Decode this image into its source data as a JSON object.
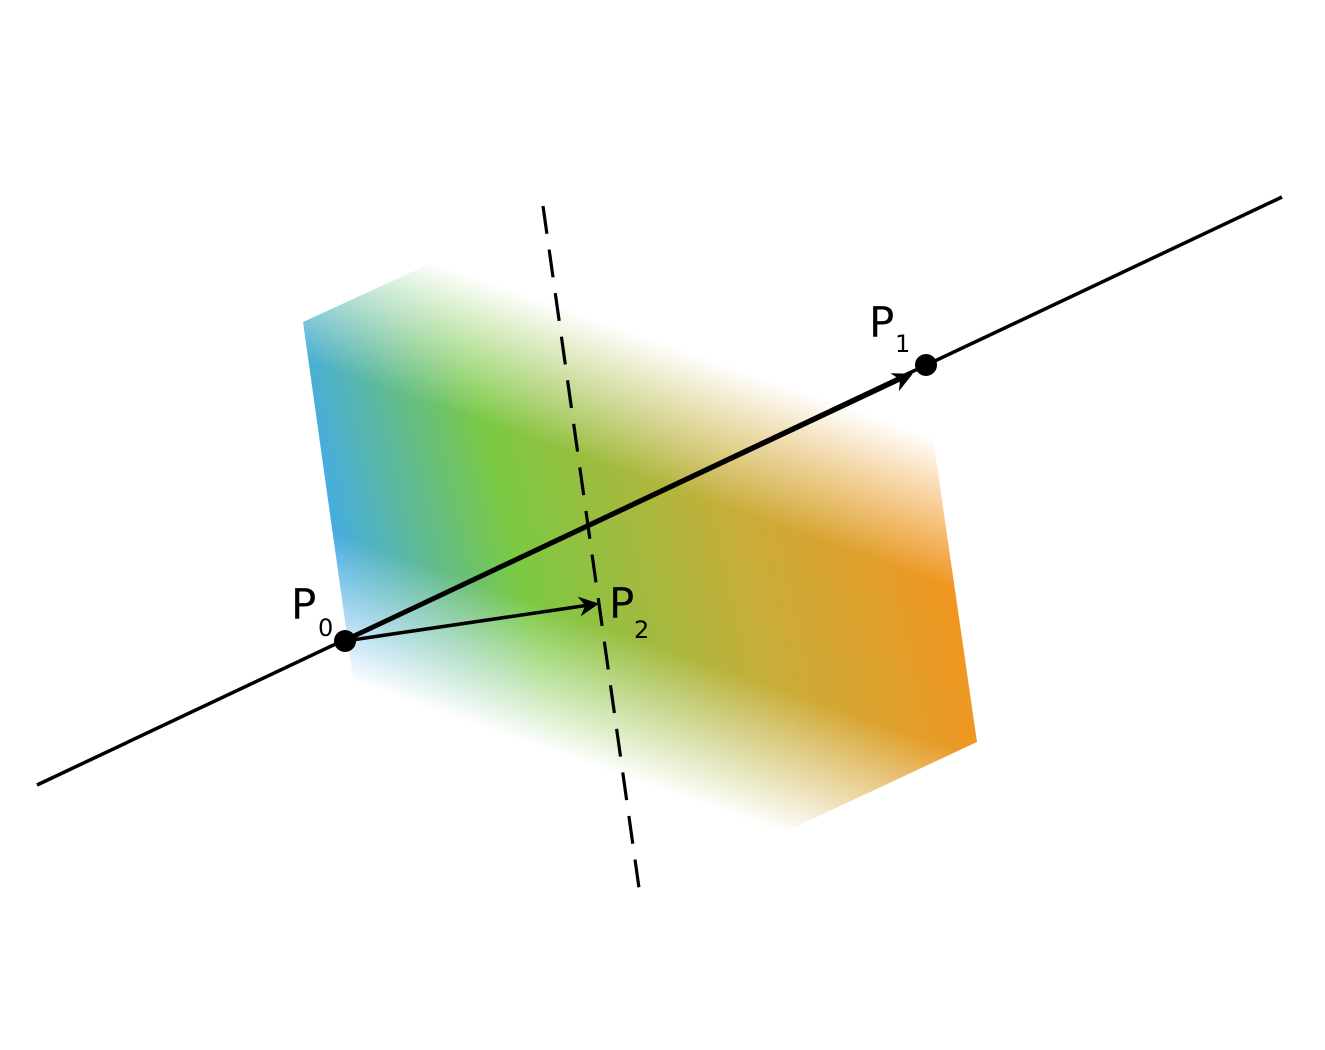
{
  "points": {
    "p0": {
      "main": "P",
      "sub": "0"
    },
    "p1": {
      "main": "P",
      "sub": "1"
    },
    "p2": {
      "main": "P",
      "sub": "2"
    }
  },
  "colors": {
    "gradient_left": "#3fa9f5",
    "gradient_mid": "#7ac943",
    "gradient_right": "#f7931e",
    "line": "#000000",
    "background": "#ffffff"
  }
}
